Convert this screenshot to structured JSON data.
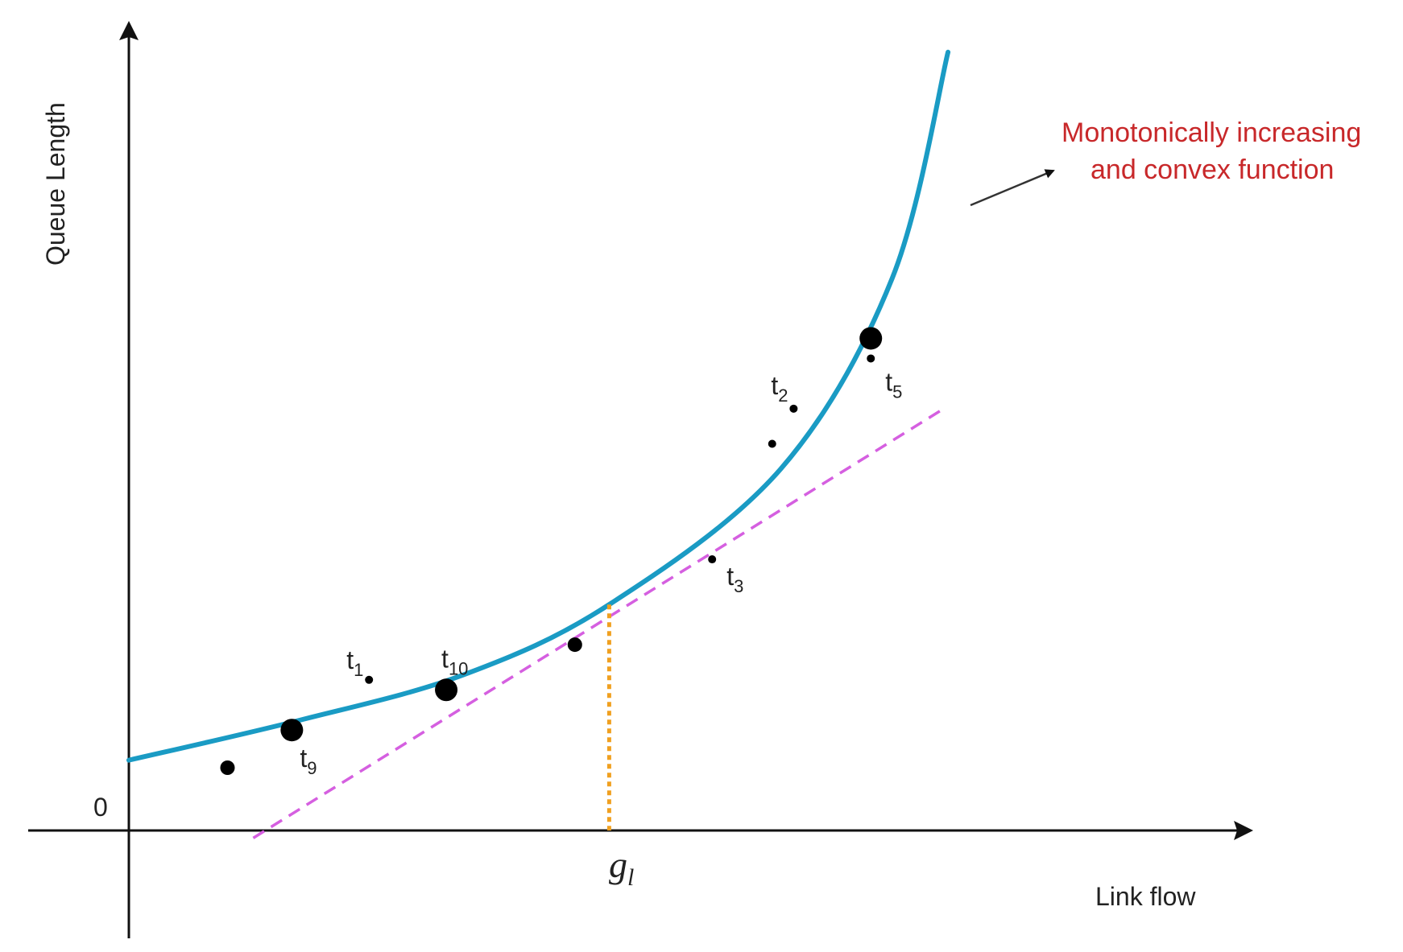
{
  "chart_data": {
    "type": "scatter",
    "xlabel": "Link flow",
    "ylabel": "Queue Length",
    "origin_label": "0",
    "xtick": {
      "main": "g",
      "sub": "l"
    },
    "curve_annotation": {
      "lines": [
        "Monotonically increasing",
        "and convex function"
      ],
      "color": "#c8282a"
    },
    "series": [
      {
        "kind": "convex-curve",
        "color": "#1a9bc4",
        "points": [
          [
            0.0,
            0.14
          ],
          [
            2.0,
            0.22
          ],
          [
            3.9,
            0.31
          ],
          [
            5.6,
            0.45
          ],
          [
            7.6,
            0.72
          ],
          [
            8.9,
            1.1
          ],
          [
            9.55,
            1.55
          ]
        ]
      },
      {
        "kind": "tangent-line",
        "color": "#d55fe0",
        "points": [
          [
            1.45,
            -0.015
          ],
          [
            9.5,
            0.84
          ]
        ]
      },
      {
        "kind": "tangent-drop",
        "color": "#f0a020",
        "points": [
          [
            5.6,
            0.45
          ],
          [
            5.6,
            0.0
          ]
        ]
      }
    ],
    "points": [
      {
        "x": 1.15,
        "y": 0.125,
        "size": "medium",
        "label": ""
      },
      {
        "x": 1.9,
        "y": 0.2,
        "size": "large",
        "label": "t",
        "sub": "9"
      },
      {
        "x": 2.8,
        "y": 0.3,
        "size": "small",
        "label": "t",
        "sub": "1"
      },
      {
        "x": 3.7,
        "y": 0.28,
        "size": "large",
        "label": "t",
        "sub": "10"
      },
      {
        "x": 5.2,
        "y": 0.37,
        "size": "medium",
        "label": ""
      },
      {
        "x": 6.8,
        "y": 0.54,
        "size": "small",
        "label": "t",
        "sub": "3"
      },
      {
        "x": 7.5,
        "y": 0.77,
        "size": "small",
        "label": ""
      },
      {
        "x": 7.75,
        "y": 0.84,
        "size": "small",
        "label": "t",
        "sub": "2"
      },
      {
        "x": 8.65,
        "y": 0.98,
        "size": "large",
        "label": ""
      },
      {
        "x": 8.65,
        "y": 0.94,
        "size": "small",
        "label": "t",
        "sub": "5"
      }
    ],
    "grid": false,
    "legend": "none"
  }
}
